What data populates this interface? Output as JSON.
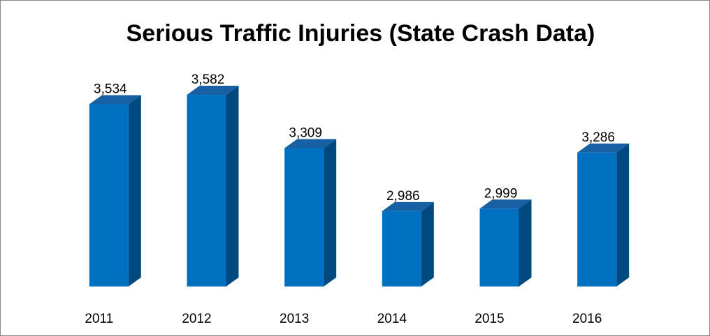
{
  "chart_data": {
    "type": "bar",
    "title": "Serious Traffic Injuries (State Crash Data)",
    "categories": [
      "2011",
      "2012",
      "2013",
      "2014",
      "2015",
      "2016"
    ],
    "values": [
      3534,
      3582,
      3309,
      2986,
      2999,
      3286
    ],
    "value_labels": [
      "3,534",
      "3,582",
      "3,309",
      "2,986",
      "2,999",
      "3,286"
    ],
    "color": "#0070c0",
    "ylim": [
      2600,
      4000
    ]
  }
}
